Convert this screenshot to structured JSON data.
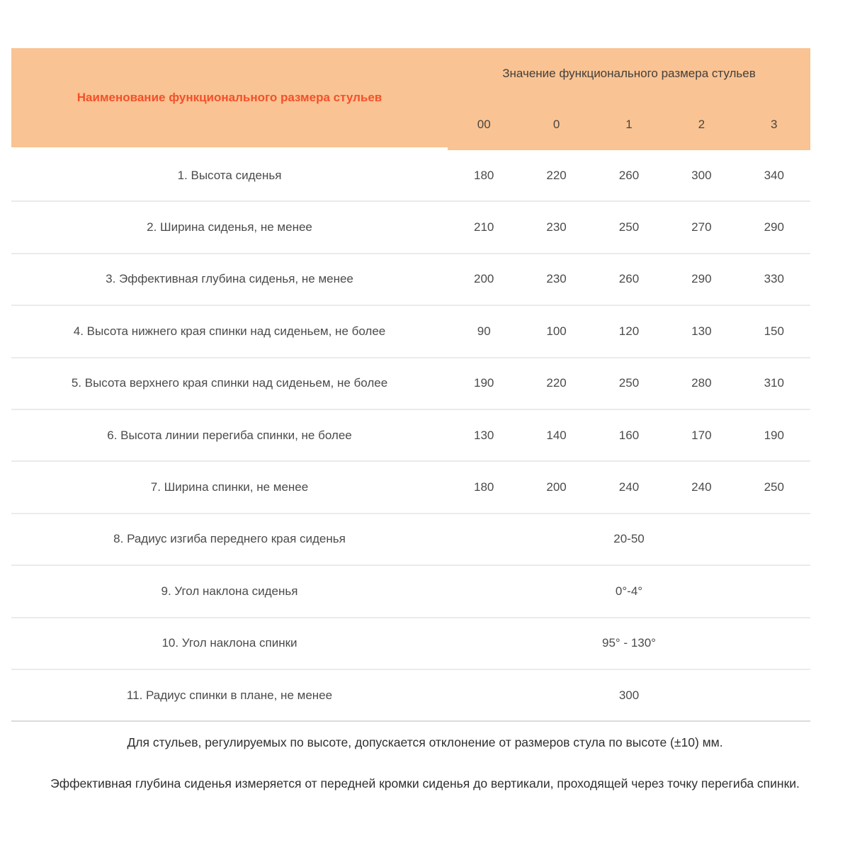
{
  "colors": {
    "header_bg": "#f9c393",
    "accent_red": "#f4502a",
    "body_text": "#4b4b4b",
    "separator": "#eceaea"
  },
  "table": {
    "header": {
      "name_col_label": "Наименование функционального размера стульев",
      "value_col_label": "Значение функционального размера стульев",
      "size_labels": [
        "00",
        "0",
        "1",
        "2",
        "3"
      ]
    },
    "rows": [
      {
        "label": "1. Высота сиденья",
        "values": [
          "180",
          "220",
          "260",
          "300",
          "340"
        ]
      },
      {
        "label": "2. Ширина сиденья, не менее",
        "values": [
          "210",
          "230",
          "250",
          "270",
          "290"
        ]
      },
      {
        "label": "3. Эффективная глубина сиденья, не менее",
        "values": [
          "200",
          "230",
          "260",
          "290",
          "330"
        ]
      },
      {
        "label": "4. Высота нижнего края спинки над сиденьем, не более",
        "values": [
          "90",
          "100",
          "120",
          "130",
          "150"
        ]
      },
      {
        "label": "5. Высота верхнего края спинки над сиденьем, не более",
        "values": [
          "190",
          "220",
          "250",
          "280",
          "310"
        ]
      },
      {
        "label": "6. Высота линии перегиба спинки, не более",
        "values": [
          "130",
          "140",
          "160",
          "170",
          "190"
        ]
      },
      {
        "label": "7. Ширина спинки, не менее",
        "values": [
          "180",
          "200",
          "240",
          "240",
          "250"
        ]
      },
      {
        "label": "8. Радиус изгиба переднего края сиденья",
        "merged_value": "20-50"
      },
      {
        "label": "9. Угол наклона сиденья",
        "merged_value": "0°-4°"
      },
      {
        "label": "10. Угол наклона спинки",
        "merged_value": "95° - 130°"
      },
      {
        "label": "11. Радиус спинки в плане, не менее",
        "merged_value": "300"
      }
    ],
    "notes": [
      "Для стульев, регулируемых по высоте, допускается отклонение от размеров стула по высоте (±10) мм.",
      "Эффективная глубина сиденья измеряется от передней кромки сиденья до вертикали, проходящей через точку перегиба спинки."
    ]
  }
}
